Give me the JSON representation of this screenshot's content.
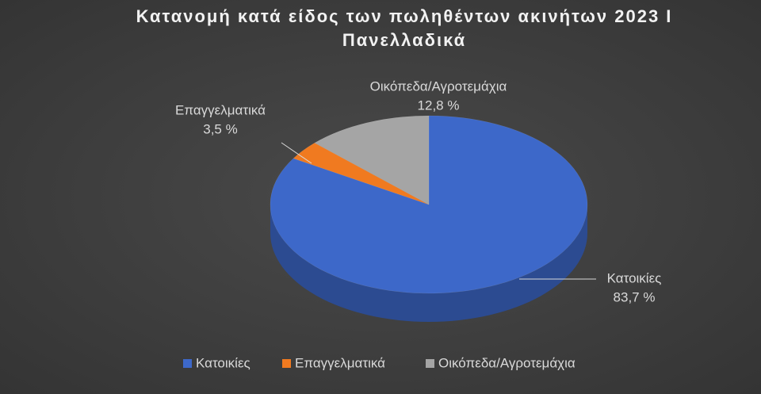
{
  "chart_data": {
    "type": "pie",
    "title": "Κατανομή κατά είδος των πωληθέντων ακινήτων 2023 Ι Πανελλαδικά",
    "categories": [
      "Κατοικίες",
      "Επαγγελματικά",
      "Οικόπεδα/Αγροτεμάχια"
    ],
    "values": [
      83.7,
      3.5,
      12.8
    ],
    "value_labels": [
      "83,7 %",
      "3,5 %",
      "12,8 %"
    ],
    "colors": [
      "#3d68c9",
      "#f07a20",
      "#a5a5a5"
    ],
    "legend": "bottom"
  }
}
